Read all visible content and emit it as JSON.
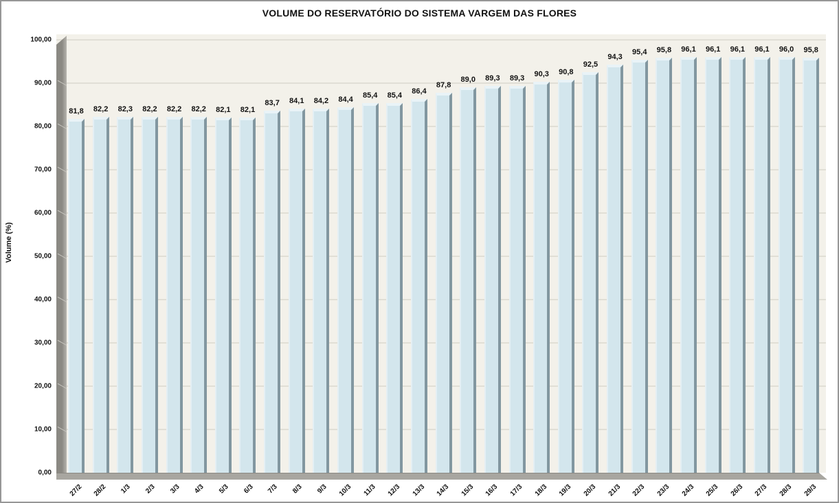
{
  "title": "VOLUME DO RESERVATÓRIO DO SISTEMA VARGEM DAS FLORES",
  "y_axis": {
    "title": "Volume (%)",
    "tick_labels": [
      "100,00",
      "90,00",
      "80,00",
      "70,00",
      "60,00",
      "50,00",
      "40,00",
      "30,00",
      "20,00",
      "10,00",
      "0,00"
    ],
    "tick_values": [
      100,
      90,
      80,
      70,
      60,
      50,
      40,
      30,
      20,
      10,
      0
    ]
  },
  "chart_data": {
    "type": "bar",
    "title": "VOLUME DO RESERVATÓRIO DO SISTEMA VARGEM DAS FLORES",
    "xlabel": "",
    "ylabel": "Volume (%)",
    "ylim": [
      0,
      100
    ],
    "y_tick_step": 10,
    "grid": true,
    "legend_position": "none",
    "style": "3d-beveled-bars",
    "categories": [
      "27/2",
      "28/2",
      "1/3",
      "2/3",
      "3/3",
      "4/3",
      "5/3",
      "6/3",
      "7/3",
      "8/3",
      "9/3",
      "10/3",
      "11/3",
      "12/3",
      "13/3",
      "14/3",
      "15/3",
      "16/3",
      "17/3",
      "18/3",
      "19/3",
      "20/3",
      "21/3",
      "22/3",
      "23/3",
      "24/3",
      "25/3",
      "26/3",
      "27/3",
      "28/3",
      "29/3"
    ],
    "values": [
      81.8,
      82.2,
      82.3,
      82.2,
      82.2,
      82.2,
      82.1,
      82.1,
      83.7,
      84.1,
      84.2,
      84.4,
      85.4,
      85.4,
      86.4,
      87.8,
      89.0,
      89.3,
      89.3,
      90.3,
      90.8,
      92.5,
      94.3,
      95.4,
      95.8,
      96.1,
      96.1,
      96.1,
      96.1,
      96.0,
      95.8
    ],
    "value_labels": [
      "81,8",
      "82,2",
      "82,3",
      "82,2",
      "82,2",
      "82,2",
      "82,1",
      "82,1",
      "83,7",
      "84,1",
      "84,2",
      "84,4",
      "85,4",
      "85,4",
      "86,4",
      "87,8",
      "89,0",
      "89,3",
      "89,3",
      "90,3",
      "90,8",
      "92,5",
      "94,3",
      "95,4",
      "95,8",
      "96,1",
      "96,1",
      "96,1",
      "96,1",
      "96,0",
      "95,8"
    ],
    "colors": {
      "bar_face": "#d3e6ed",
      "bar_side": "#8297a0",
      "bar_top_bevel": "#e9f3f7",
      "plot_bg": "#f3f1ea",
      "gridline": "#e1dfd6",
      "wall_floor": "#a8a6a0",
      "text": "#111111"
    }
  }
}
